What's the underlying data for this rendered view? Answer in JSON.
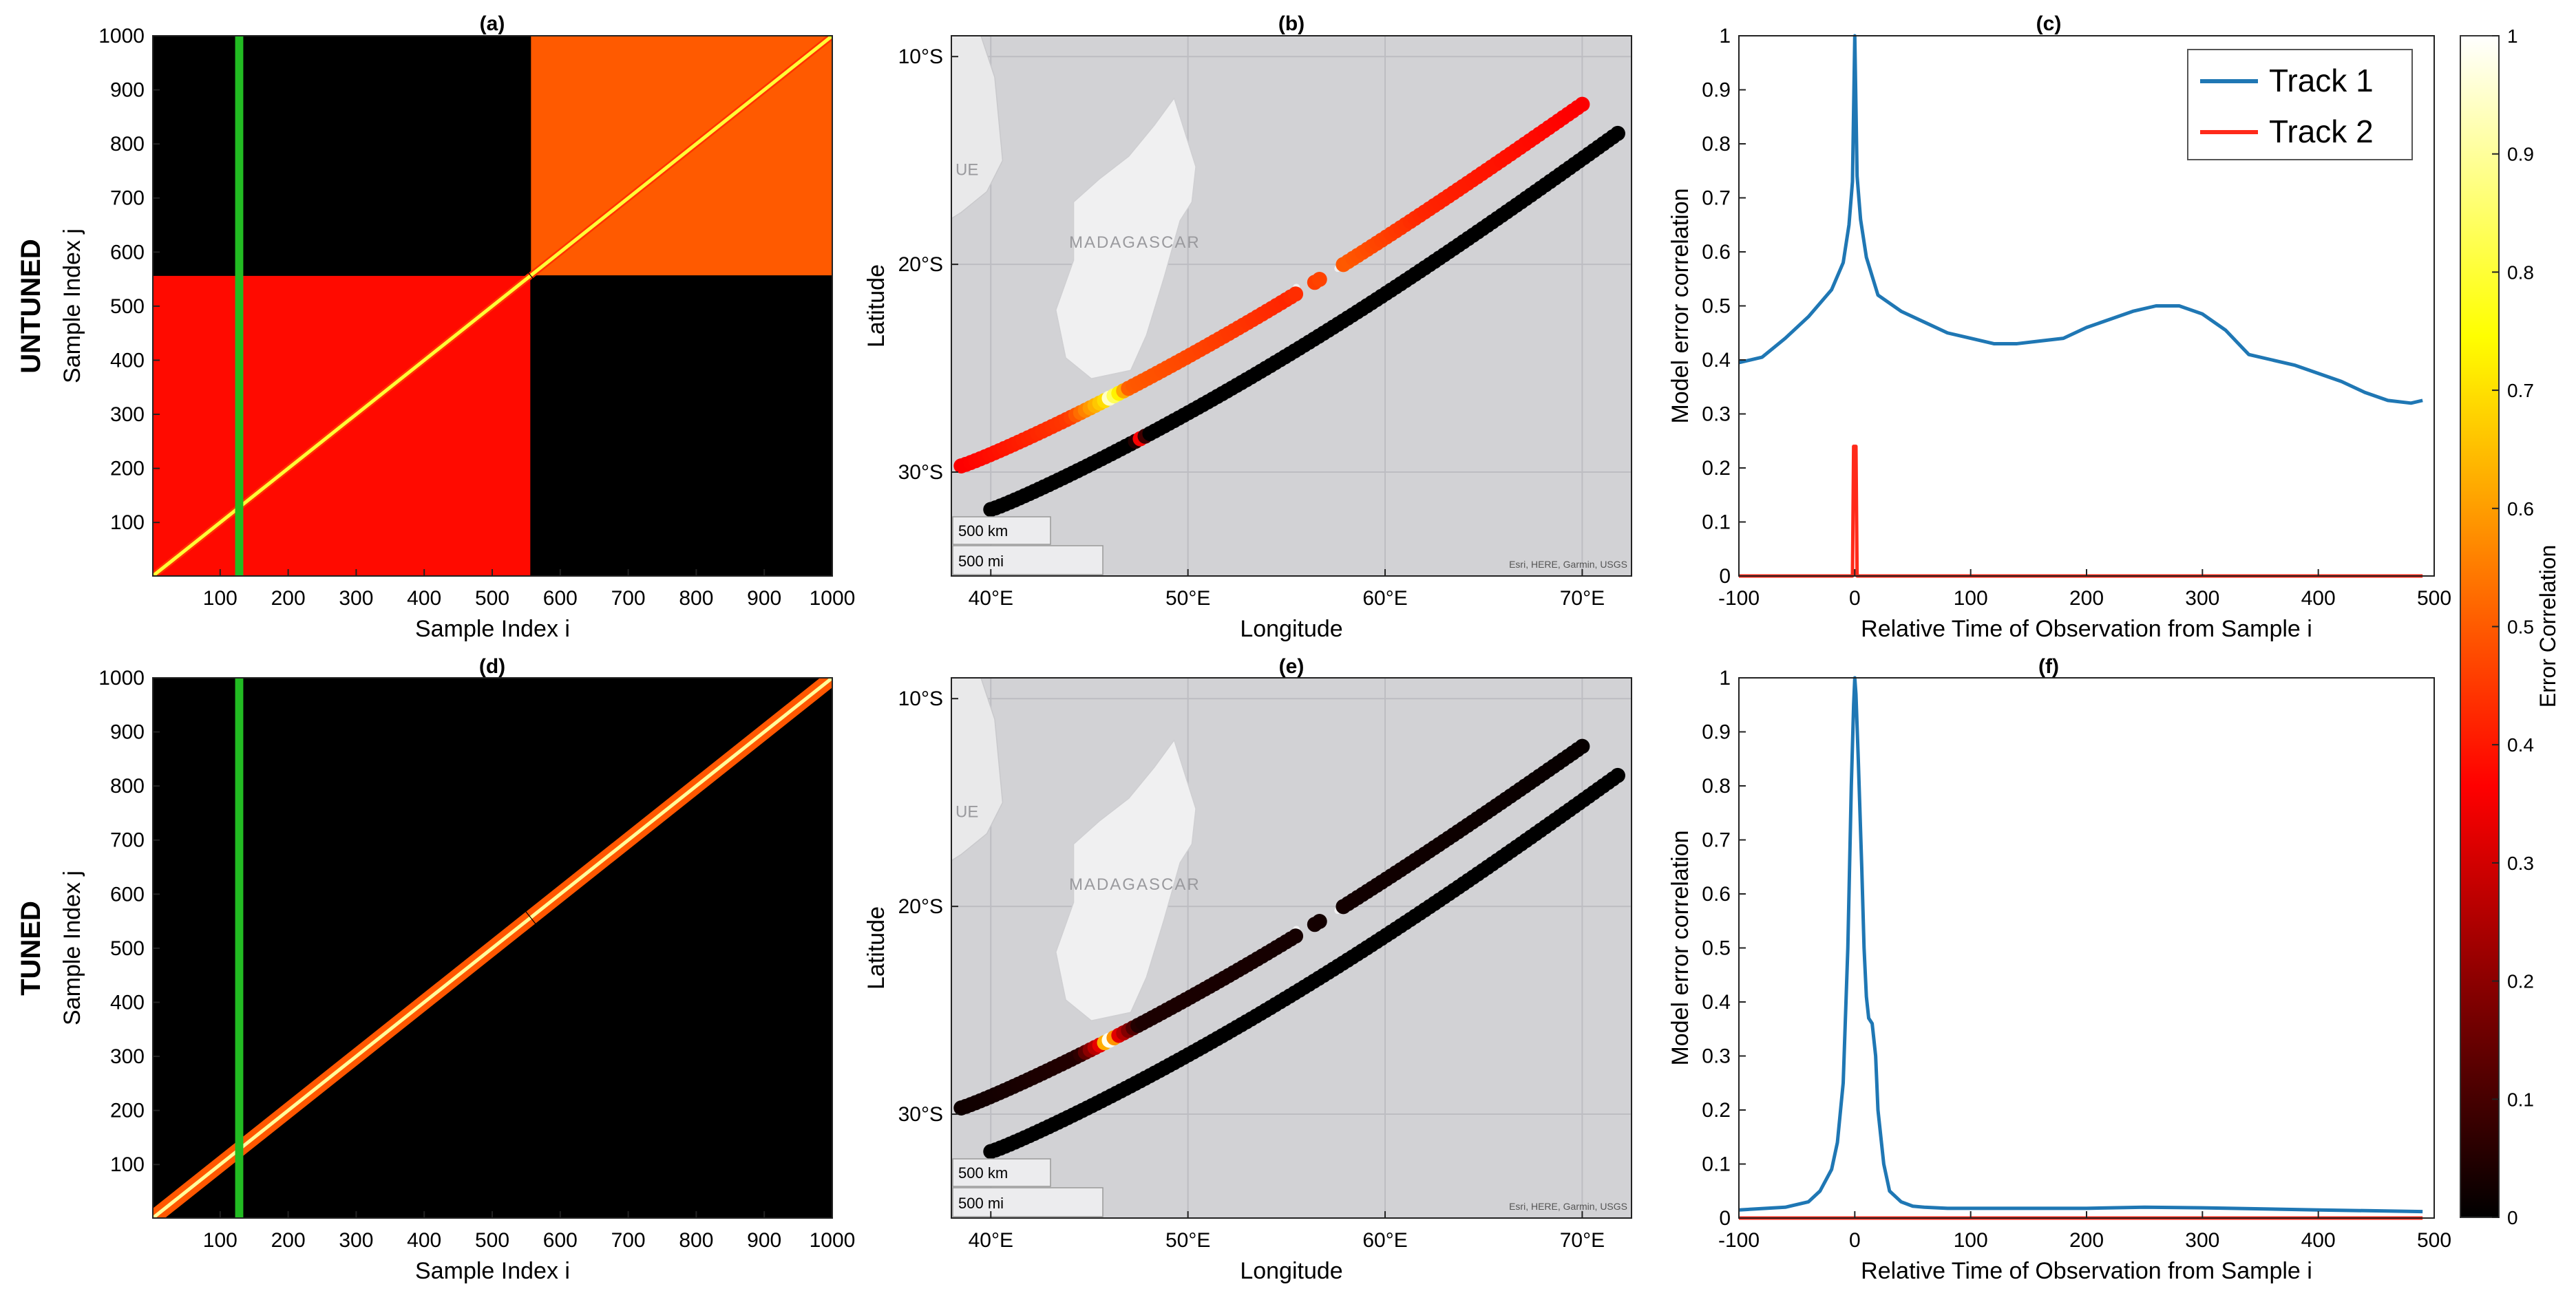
{
  "row_labels": [
    "UNTUNED",
    "TUNED"
  ],
  "colorbar": {
    "label": "Error Correlation",
    "range": [
      0,
      1
    ],
    "ticks": [
      "0",
      "0.1",
      "0.2",
      "0.3",
      "0.4",
      "0.5",
      "0.6",
      "0.7",
      "0.8",
      "0.9",
      "1"
    ],
    "colormap": "hot"
  },
  "legend": {
    "placement": "top-right of panel (c)",
    "entries": [
      {
        "label": "Track 1",
        "color": "#1f77b4"
      },
      {
        "label": "Track 2",
        "color": "#ff2a1a"
      }
    ]
  },
  "map_text": {
    "country": "MADAGASCAR",
    "edge_label": "UE",
    "scale_km": "500 km",
    "scale_mi": "500 mi",
    "attribution": "Esri, HERE, Garmin, USGS"
  },
  "highlight_column": {
    "sample_index": 128,
    "color": "#22bb22"
  },
  "chart_data": [
    {
      "id": "a",
      "type": "heatmap",
      "title": "(a)",
      "xlabel": "Sample Index i",
      "ylabel": "Sample Index j",
      "xlim": [
        1,
        1000
      ],
      "ylim": [
        1,
        1000
      ],
      "xticks": [
        "100",
        "200",
        "300",
        "400",
        "500",
        "600",
        "700",
        "800",
        "900",
        "1000"
      ],
      "yticks": [
        "100",
        "200",
        "300",
        "400",
        "500",
        "600",
        "700",
        "800",
        "900",
        "1000"
      ],
      "track_boundary": 556,
      "diagonal_value": 0.8,
      "within_track_block": [
        {
          "track": 1,
          "range": [
            1,
            556
          ],
          "value": 0.38
        },
        {
          "track": 2,
          "range": [
            557,
            1000
          ],
          "value": 0.5
        }
      ],
      "cross_track_value": 0.0
    },
    {
      "id": "b",
      "type": "scatter",
      "title": "(b)",
      "xlabel": "Longitude",
      "ylabel": "Latitude",
      "xlim": [
        38,
        72.5
      ],
      "ylim": [
        -35,
        -9
      ],
      "xticks": [
        "40°E",
        "50°E",
        "60°E",
        "70°E"
      ],
      "yticks": [
        "10°S",
        "20°S",
        "30°S"
      ],
      "series": [
        {
          "name": "Track 1",
          "start": [
            38.5,
            -29.7
          ],
          "end": [
            70.0,
            -12.3
          ],
          "gap": [
            55.5,
            57.7
          ],
          "color_values": [
            {
              "lon": 38.5,
              "v": 0.36
            },
            {
              "lon": 44.0,
              "v": 0.45
            },
            {
              "lon": 45.8,
              "v": 0.7
            },
            {
              "lon": 46.0,
              "v": 0.95
            },
            {
              "lon": 47.0,
              "v": 0.5
            },
            {
              "lon": 55.0,
              "v": 0.42
            },
            {
              "lon": 58.0,
              "v": 0.5
            },
            {
              "lon": 62.0,
              "v": 0.42
            },
            {
              "lon": 70.0,
              "v": 0.36
            }
          ]
        },
        {
          "name": "Track 2",
          "start": [
            40.0,
            -31.8
          ],
          "end": [
            71.8,
            -13.7
          ],
          "color_values": [
            {
              "lon": 40.0,
              "v": 0.0
            },
            {
              "lon": 47.3,
              "v": 0.0
            },
            {
              "lon": 47.6,
              "v": 0.38
            },
            {
              "lon": 47.9,
              "v": 0.0
            },
            {
              "lon": 71.8,
              "v": 0.0
            }
          ]
        }
      ]
    },
    {
      "id": "c",
      "type": "line",
      "title": "(c)",
      "xlabel": "Relative Time of Observation from Sample i",
      "ylabel": "Model error correlation",
      "xlim": [
        -100,
        500
      ],
      "ylim": [
        0,
        1
      ],
      "xticks": [
        "-100",
        "0",
        "100",
        "200",
        "300",
        "400",
        "500"
      ],
      "yticks": [
        "0",
        "0.1",
        "0.2",
        "0.3",
        "0.4",
        "0.5",
        "0.6",
        "0.7",
        "0.8",
        "0.9",
        "1"
      ],
      "series": [
        {
          "name": "Track 1",
          "x": [
            -100,
            -80,
            -60,
            -40,
            -20,
            -10,
            -5,
            -2,
            0,
            2,
            5,
            10,
            20,
            40,
            60,
            80,
            100,
            120,
            140,
            160,
            180,
            200,
            220,
            240,
            260,
            280,
            300,
            320,
            340,
            360,
            380,
            400,
            420,
            440,
            460,
            480,
            490
          ],
          "y": [
            0.395,
            0.405,
            0.44,
            0.48,
            0.53,
            0.58,
            0.65,
            0.73,
            1.0,
            0.74,
            0.66,
            0.59,
            0.52,
            0.49,
            0.47,
            0.45,
            0.44,
            0.43,
            0.43,
            0.435,
            0.44,
            0.46,
            0.475,
            0.49,
            0.5,
            0.5,
            0.485,
            0.455,
            0.41,
            0.4,
            0.39,
            0.375,
            0.36,
            0.34,
            0.325,
            0.32,
            0.325
          ]
        },
        {
          "name": "Track 2",
          "x": [
            -100,
            -2,
            -1,
            0,
            1,
            2,
            490
          ],
          "y": [
            0,
            0,
            0.24,
            0.24,
            0.24,
            0,
            0
          ]
        }
      ]
    },
    {
      "id": "d",
      "type": "heatmap",
      "title": "(d)",
      "xlabel": "Sample Index i",
      "ylabel": "Sample Index j",
      "xlim": [
        1,
        1000
      ],
      "ylim": [
        1,
        1000
      ],
      "xticks": [
        "100",
        "200",
        "300",
        "400",
        "500",
        "600",
        "700",
        "800",
        "900",
        "1000"
      ],
      "yticks": [
        "100",
        "200",
        "300",
        "400",
        "500",
        "600",
        "700",
        "800",
        "900",
        "1000"
      ],
      "track_boundary": 556,
      "diagonal_value": 0.9,
      "within_track_block": [
        {
          "track": 1,
          "range": [
            1,
            556
          ],
          "value": 0.0
        },
        {
          "track": 2,
          "range": [
            557,
            1000
          ],
          "value": 0.0
        }
      ],
      "cross_track_value": 0.0
    },
    {
      "id": "e",
      "type": "scatter",
      "title": "(e)",
      "xlabel": "Longitude",
      "ylabel": "Latitude",
      "xlim": [
        38,
        72.5
      ],
      "ylim": [
        -35,
        -9
      ],
      "xticks": [
        "40°E",
        "50°E",
        "60°E",
        "70°E"
      ],
      "yticks": [
        "10°S",
        "20°S",
        "30°S"
      ],
      "series": [
        {
          "name": "Track 1",
          "start": [
            38.5,
            -29.7
          ],
          "end": [
            70.0,
            -12.3
          ],
          "gap": [
            55.5,
            57.7
          ],
          "color_values": [
            {
              "lon": 38.5,
              "v": 0.02
            },
            {
              "lon": 44.5,
              "v": 0.05
            },
            {
              "lon": 45.6,
              "v": 0.35
            },
            {
              "lon": 46.0,
              "v": 1.0
            },
            {
              "lon": 46.4,
              "v": 0.35
            },
            {
              "lon": 47.5,
              "v": 0.04
            },
            {
              "lon": 70.0,
              "v": 0.01
            }
          ]
        },
        {
          "name": "Track 2",
          "start": [
            40.0,
            -31.8
          ],
          "end": [
            71.8,
            -13.7
          ],
          "color_values": [
            {
              "lon": 40.0,
              "v": 0.0
            },
            {
              "lon": 71.8,
              "v": 0.0
            }
          ]
        }
      ]
    },
    {
      "id": "f",
      "type": "line",
      "title": "(f)",
      "xlabel": "Relative Time of Observation from Sample i",
      "ylabel": "Model error correlation",
      "xlim": [
        -100,
        500
      ],
      "ylim": [
        0,
        1
      ],
      "xticks": [
        "-100",
        "0",
        "100",
        "200",
        "300",
        "400",
        "500"
      ],
      "yticks": [
        "0",
        "0.1",
        "0.2",
        "0.3",
        "0.4",
        "0.5",
        "0.6",
        "0.7",
        "0.8",
        "0.9",
        "1"
      ],
      "series": [
        {
          "name": "Track 1",
          "x": [
            -100,
            -60,
            -40,
            -30,
            -20,
            -15,
            -10,
            -6,
            -3,
            -1,
            0,
            1,
            3,
            6,
            8,
            10,
            12,
            15,
            18,
            20,
            25,
            30,
            40,
            50,
            60,
            80,
            100,
            200,
            250,
            300,
            400,
            490
          ],
          "y": [
            0.015,
            0.02,
            0.03,
            0.05,
            0.09,
            0.14,
            0.25,
            0.5,
            0.8,
            0.95,
            1.0,
            0.97,
            0.85,
            0.65,
            0.5,
            0.41,
            0.37,
            0.36,
            0.3,
            0.2,
            0.1,
            0.05,
            0.03,
            0.022,
            0.02,
            0.018,
            0.018,
            0.018,
            0.02,
            0.019,
            0.015,
            0.012
          ]
        },
        {
          "name": "Track 2",
          "x": [
            -100,
            490
          ],
          "y": [
            0.0,
            0.0
          ]
        }
      ]
    }
  ]
}
